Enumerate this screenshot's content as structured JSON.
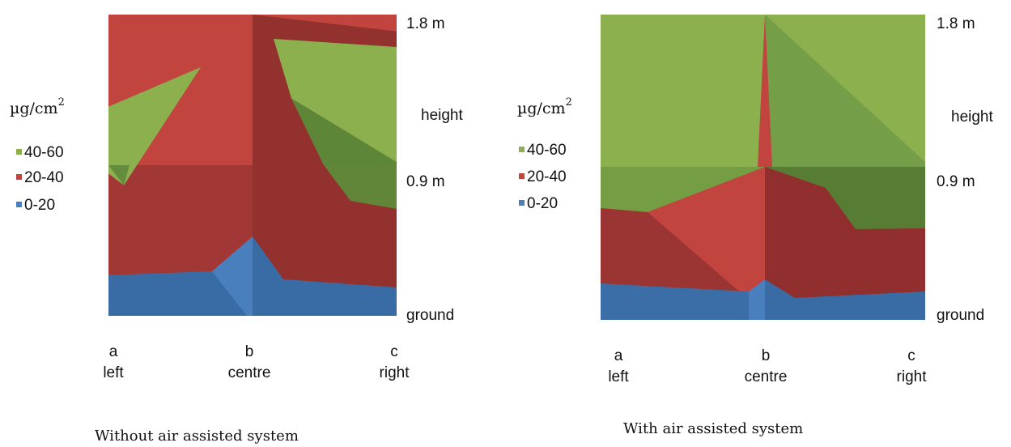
{
  "chart_data": [
    {
      "type": "area",
      "title": "Without air assisted system",
      "unit_label": "µg/cm",
      "unit_exp": "2",
      "series": [
        {
          "name": "40-60",
          "color": "#8db04f"
        },
        {
          "name": "20-40",
          "color": "#c2443f"
        },
        {
          "name": "0-20",
          "color": "#4a7fbe"
        }
      ],
      "x": [
        {
          "letter": "a",
          "label": "left"
        },
        {
          "letter": "b",
          "label": "centre"
        },
        {
          "letter": "c",
          "label": "right"
        }
      ],
      "y_labels": [
        "1.8 m",
        "height",
        "0.9 m",
        "ground"
      ],
      "ylim": [
        0,
        1.8
      ],
      "profiles": {
        "band_20_40_top": [
          [
            0,
            1.8
          ],
          [
            1,
            1.8
          ],
          [
            2,
            1.8
          ]
        ],
        "band_40_60": [
          [
            0,
            0.78,
            1.25
          ],
          [
            0.5,
            0.8,
            1.58
          ],
          [
            1.04,
            null,
            null
          ],
          [
            1.13,
            1.38,
            1.72
          ],
          [
            1.5,
            0.98,
            1.7
          ],
          [
            2,
            0.85,
            1.64
          ]
        ],
        "band_0_20_top": [
          [
            0,
            0.24
          ],
          [
            0.6,
            0.25
          ],
          [
            1,
            0.46
          ],
          [
            1.2,
            0.22
          ],
          [
            2,
            0.17
          ]
        ]
      }
    },
    {
      "type": "area",
      "title": "With air assisted system",
      "unit_label": "µg/cm",
      "unit_exp": "2",
      "series": [
        {
          "name": "40-60",
          "color": "#8db04f"
        },
        {
          "name": "20-40",
          "color": "#c2443f"
        },
        {
          "name": "0-20",
          "color": "#4a7fbe"
        }
      ],
      "x": [
        {
          "letter": "a",
          "label": "left"
        },
        {
          "letter": "b",
          "label": "centre"
        },
        {
          "letter": "c",
          "label": "right"
        }
      ],
      "y_labels": [
        "1.8 m",
        "height",
        "0.9 m",
        "ground"
      ],
      "ylim": [
        0,
        1.8
      ],
      "profiles": {
        "band_40_60_bottom": [
          [
            0,
            0.65
          ],
          [
            0.25,
            0.63
          ],
          [
            0.5,
            0.76
          ],
          [
            0.9,
            0.88
          ],
          [
            1,
            0.9
          ],
          [
            1.3,
            0.55
          ],
          [
            2,
            0.5
          ]
        ],
        "band_20_40_spike": [
          [
            0.95,
            0.9
          ],
          [
            1,
            1.8
          ],
          [
            1.05,
            0.9
          ]
        ],
        "band_0_20_top": [
          [
            0,
            0.2
          ],
          [
            0.45,
            0.18
          ],
          [
            0.9,
            0.15
          ],
          [
            1,
            0.24
          ],
          [
            1.2,
            0.14
          ],
          [
            2,
            0.15
          ]
        ]
      }
    }
  ]
}
